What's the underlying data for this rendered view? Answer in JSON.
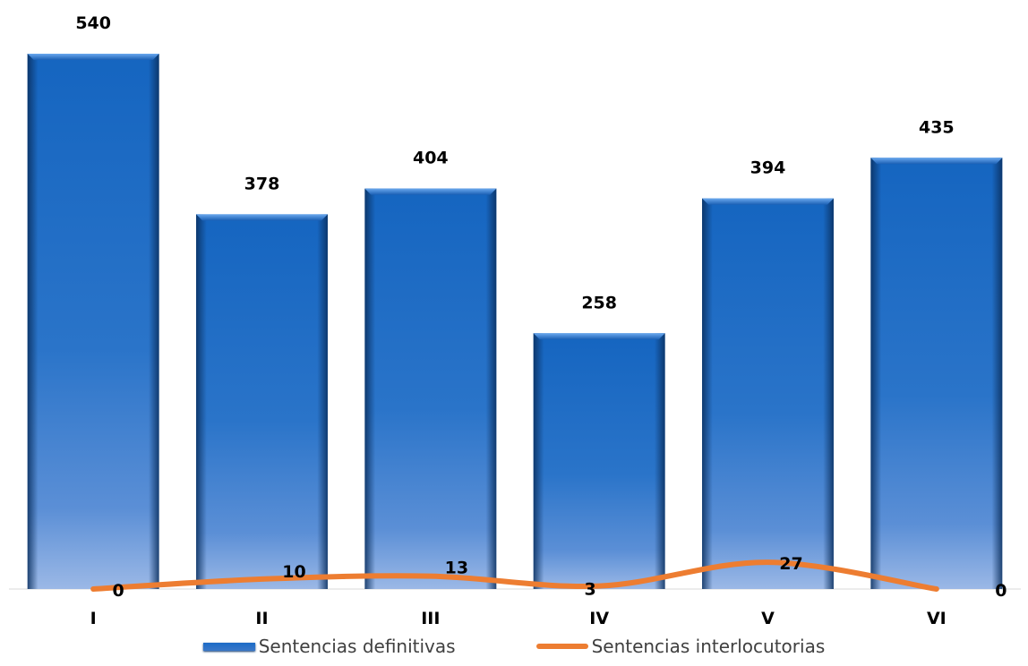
{
  "chart_data": {
    "type": "bar",
    "categories": [
      "I",
      "II",
      "III",
      "IV",
      "V",
      "VI"
    ],
    "series": [
      {
        "name": "Sentencias definitivas",
        "kind": "bar",
        "values": [
          540,
          378,
          404,
          258,
          394,
          435
        ],
        "color": "#1f6fc8"
      },
      {
        "name": "Sentencias interlocutorias",
        "kind": "line",
        "values": [
          0,
          10,
          13,
          3,
          27,
          0
        ],
        "color": "#ed7d31"
      }
    ],
    "title": "",
    "xlabel": "",
    "ylabel": "",
    "ylim": [
      0,
      540
    ],
    "grid": false,
    "legend": "bottom"
  }
}
